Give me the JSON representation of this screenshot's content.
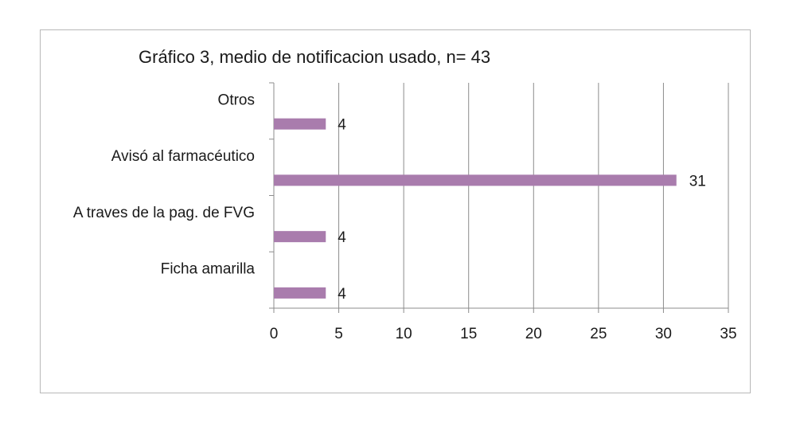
{
  "chart_data": {
    "type": "bar",
    "orientation": "horizontal",
    "title": "Gráfico 3, medio de notificacion usado, n= 43",
    "xlabel": "",
    "ylabel": "",
    "categories": [
      "Otros",
      "Avisó al farmacéutico",
      "A traves de la pag. de FVG",
      "Ficha amarilla"
    ],
    "values": [
      4,
      31,
      4,
      4
    ],
    "data_labels": [
      "4",
      "31",
      "4",
      "4"
    ],
    "xlim": [
      0,
      35
    ],
    "x_ticks": [
      "0",
      "5",
      "10",
      "15",
      "20",
      "25",
      "30",
      "35"
    ],
    "grid": "vertical",
    "legend": "none",
    "bar_color": "#a97cad"
  }
}
